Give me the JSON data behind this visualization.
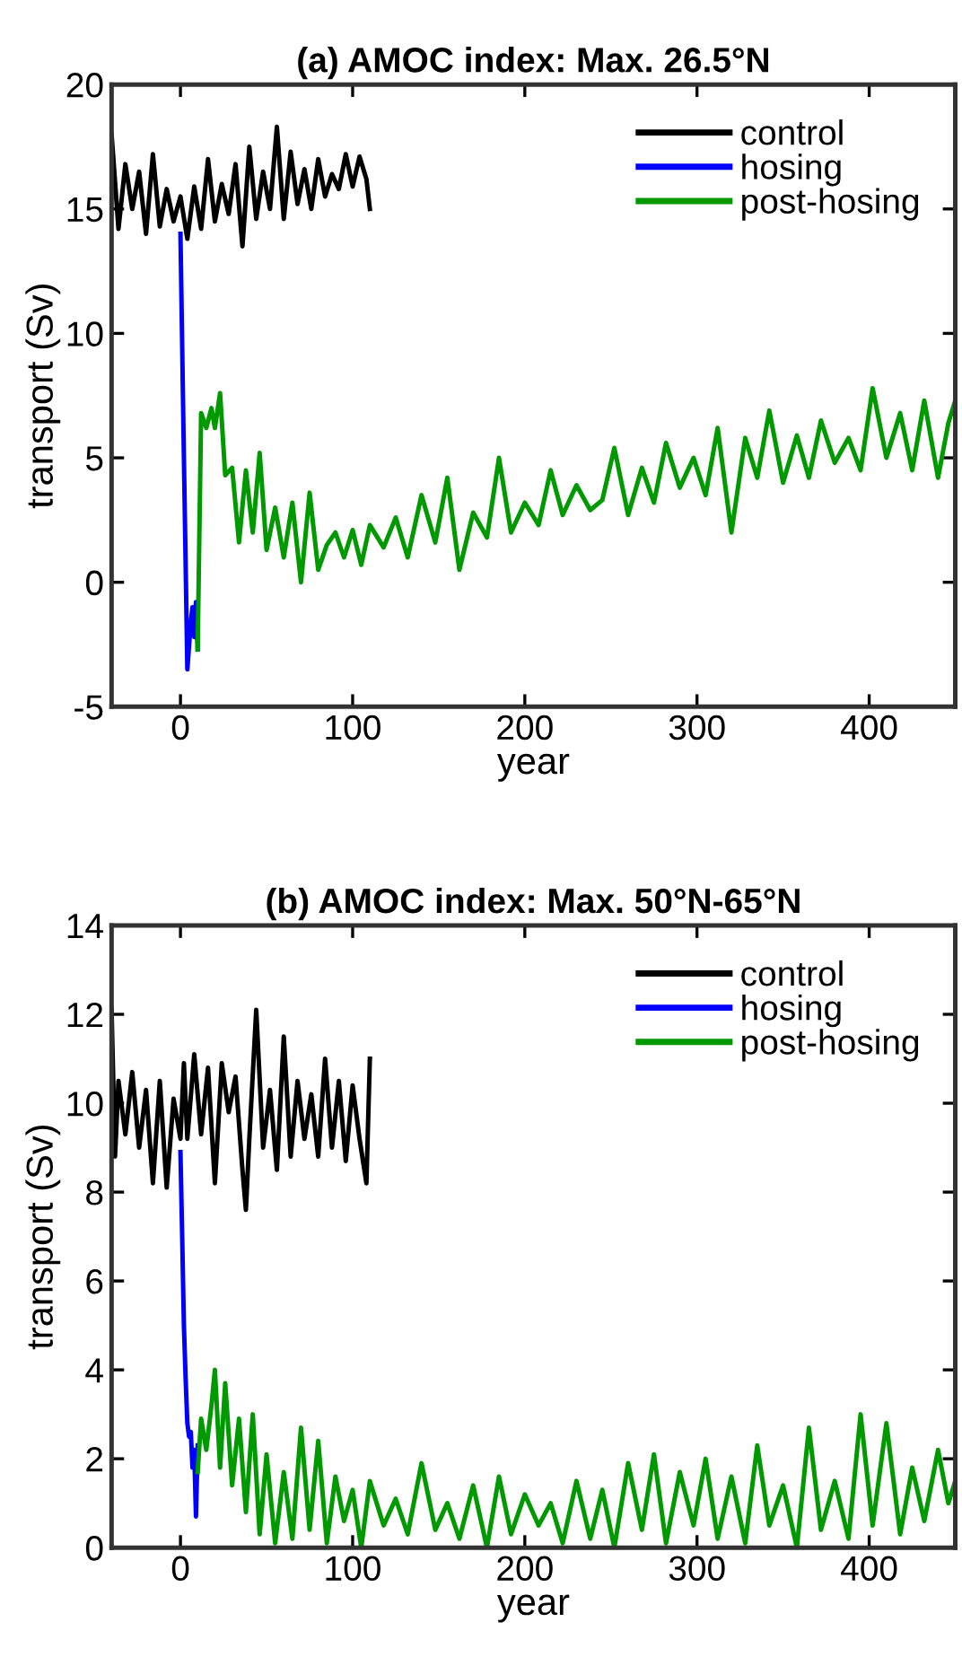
{
  "chart_data": [
    {
      "type": "line",
      "title": "(a) AMOC index: Max. 26.5°N",
      "xlabel": "year",
      "ylabel": "transport (Sv)",
      "xlim": [
        -40,
        450
      ],
      "ylim": [
        -5,
        20
      ],
      "xticks": [
        0,
        100,
        200,
        300,
        400
      ],
      "yticks": [
        -5,
        0,
        5,
        10,
        15,
        20
      ],
      "legend": "top right",
      "grid": false,
      "series": [
        {
          "name": "control",
          "color": "#000000",
          "x": [
            -40,
            -36,
            -32,
            -28,
            -24,
            -20,
            -16,
            -12,
            -8,
            -4,
            0,
            4,
            8,
            12,
            16,
            20,
            24,
            28,
            32,
            36,
            40,
            44,
            48,
            52,
            56,
            60,
            64,
            68,
            72,
            76,
            80,
            84,
            88,
            92,
            96,
            100,
            104,
            108,
            110
          ],
          "values": [
            18.0,
            14.2,
            16.8,
            15.0,
            16.5,
            14.0,
            17.2,
            14.3,
            15.8,
            14.5,
            15.5,
            13.8,
            15.9,
            14.2,
            17.0,
            14.5,
            16.0,
            14.8,
            16.8,
            13.5,
            17.5,
            14.6,
            16.5,
            15.0,
            18.3,
            14.6,
            17.3,
            15.2,
            16.6,
            15.0,
            17.0,
            15.5,
            16.4,
            15.8,
            17.2,
            15.9,
            17.1,
            16.2,
            15.0
          ]
        },
        {
          "name": "hosing",
          "color": "#0000ff",
          "x": [
            0,
            2,
            4,
            6,
            7,
            8,
            9,
            10
          ],
          "values": [
            14.0,
            5.0,
            -3.5,
            -1.6,
            -1.0,
            -2.2,
            -0.8,
            -2.7
          ]
        },
        {
          "name": "post-hosing",
          "color": "#009900",
          "x": [
            10,
            12,
            15,
            18,
            20,
            23,
            26,
            30,
            34,
            38,
            42,
            46,
            50,
            55,
            60,
            65,
            70,
            75,
            80,
            85,
            90,
            95,
            100,
            105,
            110,
            118,
            125,
            132,
            140,
            148,
            155,
            162,
            170,
            178,
            185,
            192,
            200,
            208,
            215,
            222,
            230,
            238,
            245,
            252,
            260,
            268,
            275,
            282,
            290,
            298,
            305,
            312,
            320,
            328,
            335,
            342,
            350,
            358,
            365,
            372,
            380,
            388,
            395,
            402,
            410,
            418,
            425,
            432,
            440,
            446,
            450
          ],
          "values": [
            -2.7,
            6.8,
            6.2,
            7.0,
            6.2,
            7.6,
            4.3,
            4.6,
            1.6,
            4.5,
            2.0,
            5.2,
            1.3,
            3.0,
            1.0,
            3.2,
            0.0,
            3.6,
            0.5,
            1.5,
            2.0,
            1.0,
            2.1,
            0.7,
            2.3,
            1.4,
            2.6,
            1.0,
            3.5,
            1.6,
            4.2,
            0.5,
            2.8,
            1.8,
            5.0,
            2.0,
            3.2,
            2.3,
            4.5,
            2.7,
            3.9,
            2.9,
            3.3,
            5.4,
            2.7,
            4.6,
            3.2,
            5.6,
            3.8,
            5.0,
            3.5,
            6.2,
            2.0,
            5.8,
            4.2,
            6.9,
            4.0,
            5.9,
            4.2,
            6.5,
            4.8,
            5.8,
            4.5,
            7.8,
            5.0,
            6.8,
            4.5,
            7.3,
            4.2,
            6.4,
            7.3
          ]
        }
      ]
    },
    {
      "type": "line",
      "title": "(b) AMOC index: Max. 50°N-65°N",
      "xlabel": "year",
      "ylabel": "transport (Sv)",
      "xlim": [
        -40,
        450
      ],
      "ylim": [
        0,
        14
      ],
      "xticks": [
        0,
        100,
        200,
        300,
        400
      ],
      "yticks": [
        0,
        2,
        4,
        6,
        8,
        10,
        12,
        14
      ],
      "legend": "top right",
      "grid": false,
      "series": [
        {
          "name": "control",
          "color": "#000000",
          "x": [
            -40,
            -38,
            -36,
            -32,
            -28,
            -24,
            -20,
            -16,
            -12,
            -8,
            -4,
            0,
            2,
            4,
            8,
            12,
            16,
            20,
            24,
            28,
            32,
            36,
            38,
            40,
            44,
            48,
            52,
            56,
            60,
            64,
            68,
            72,
            76,
            80,
            84,
            88,
            92,
            96,
            100,
            104,
            108,
            110
          ],
          "values": [
            12.1,
            8.8,
            10.5,
            9.3,
            10.7,
            9.0,
            10.3,
            8.2,
            10.5,
            8.1,
            10.1,
            9.2,
            10.9,
            9.2,
            11.1,
            9.3,
            10.8,
            8.2,
            10.9,
            9.8,
            10.6,
            8.5,
            7.6,
            9.2,
            12.1,
            9.0,
            10.3,
            8.5,
            11.5,
            8.8,
            10.5,
            9.2,
            10.2,
            8.8,
            11.0,
            9.0,
            10.5,
            8.7,
            10.4,
            9.2,
            8.2,
            11.0
          ]
        },
        {
          "name": "hosing",
          "color": "#0000ff",
          "x": [
            0,
            1,
            2,
            3,
            4,
            5,
            6,
            7,
            8,
            9,
            10
          ],
          "values": [
            8.9,
            7.0,
            5.0,
            3.8,
            2.8,
            2.5,
            2.6,
            1.8,
            2.2,
            0.7,
            2.3
          ]
        },
        {
          "name": "post-hosing",
          "color": "#009900",
          "x": [
            10,
            12,
            15,
            18,
            20,
            23,
            26,
            30,
            34,
            38,
            42,
            46,
            50,
            55,
            60,
            65,
            70,
            75,
            80,
            85,
            90,
            95,
            100,
            105,
            110,
            118,
            125,
            132,
            140,
            148,
            155,
            162,
            170,
            178,
            185,
            192,
            200,
            208,
            215,
            222,
            230,
            238,
            245,
            252,
            260,
            268,
            275,
            282,
            290,
            298,
            305,
            312,
            320,
            328,
            335,
            342,
            350,
            358,
            365,
            372,
            380,
            388,
            395,
            402,
            410,
            418,
            425,
            432,
            440,
            446,
            450
          ],
          "values": [
            1.7,
            2.9,
            2.2,
            3.2,
            4.0,
            1.8,
            3.7,
            1.4,
            2.9,
            0.8,
            3.0,
            0.3,
            2.1,
            0.1,
            1.7,
            0.2,
            2.7,
            0.4,
            2.4,
            0.1,
            1.6,
            0.6,
            1.3,
            0.0,
            1.5,
            0.5,
            1.1,
            0.3,
            1.9,
            0.4,
            1.0,
            0.2,
            1.4,
            0.0,
            1.6,
            0.3,
            1.2,
            0.5,
            1.0,
            0.1,
            1.5,
            0.2,
            1.3,
            0.0,
            1.9,
            0.4,
            2.1,
            0.1,
            1.7,
            0.5,
            2.0,
            0.2,
            1.6,
            0.1,
            2.3,
            0.5,
            1.4,
            0.0,
            2.7,
            0.4,
            1.5,
            0.2,
            3.0,
            0.5,
            2.8,
            0.3,
            1.8,
            0.6,
            2.2,
            1.0,
            1.5
          ]
        }
      ]
    }
  ]
}
